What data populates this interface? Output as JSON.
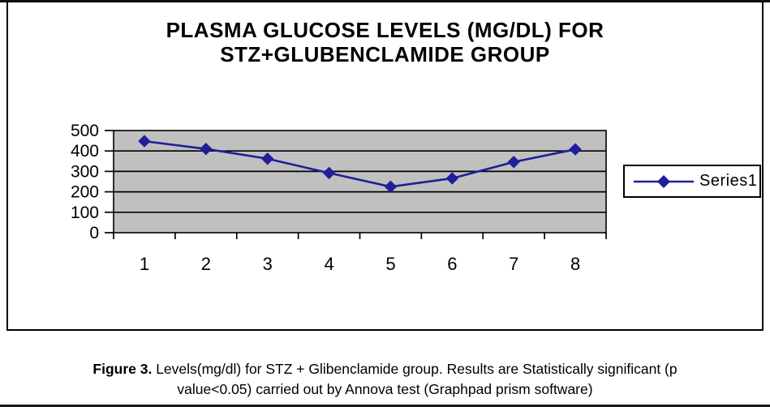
{
  "chart": {
    "title_lines": [
      "PLASMA GLUCOSE LEVELS (MG/DL) FOR",
      "STZ+GLUBENCLAMIDE GROUP"
    ],
    "legend_label": "Series1"
  },
  "chart_data": {
    "type": "line",
    "title": "PLASMA GLUCOSE LEVELS (MG/DL) FOR STZ+GLUBENCLAMIDE GROUP",
    "categories": [
      "1",
      "2",
      "3",
      "4",
      "5",
      "6",
      "7",
      "8"
    ],
    "series": [
      {
        "name": "Series1",
        "values": [
          448,
          410,
          362,
          292,
          225,
          266,
          346,
          408
        ]
      }
    ],
    "xlabel": "",
    "ylabel": "",
    "ylim": [
      0,
      500
    ],
    "yticks": [
      0,
      100,
      200,
      300,
      400,
      500
    ],
    "grid": true,
    "legend_position": "right",
    "marker": "diamond",
    "colors": {
      "line": "#1f1f99",
      "marker": "#1f1f99",
      "plot_bg": "#c0c0c0",
      "axis": "#000000",
      "frame": "#000000"
    }
  },
  "caption": {
    "prefix": "Figure 3.",
    "line1_rest": " Levels(mg/dl) for STZ + Glibenclamide group. Results are Statistically significant (p",
    "line2": "value<0.05) carried out by Annova test (Graphpad prism software)"
  }
}
